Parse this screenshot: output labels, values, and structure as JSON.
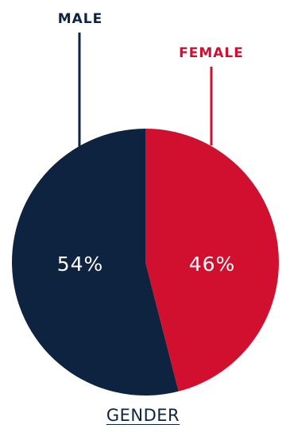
{
  "chart_data": {
    "type": "pie",
    "title": "GENDER",
    "categories": [
      "MALE",
      "FEMALE"
    ],
    "values": [
      54,
      46
    ],
    "value_labels": [
      "54%",
      "46%"
    ],
    "colors": [
      "#0d2340",
      "#d0102e"
    ],
    "legend": "leader-line labels above slices"
  }
}
